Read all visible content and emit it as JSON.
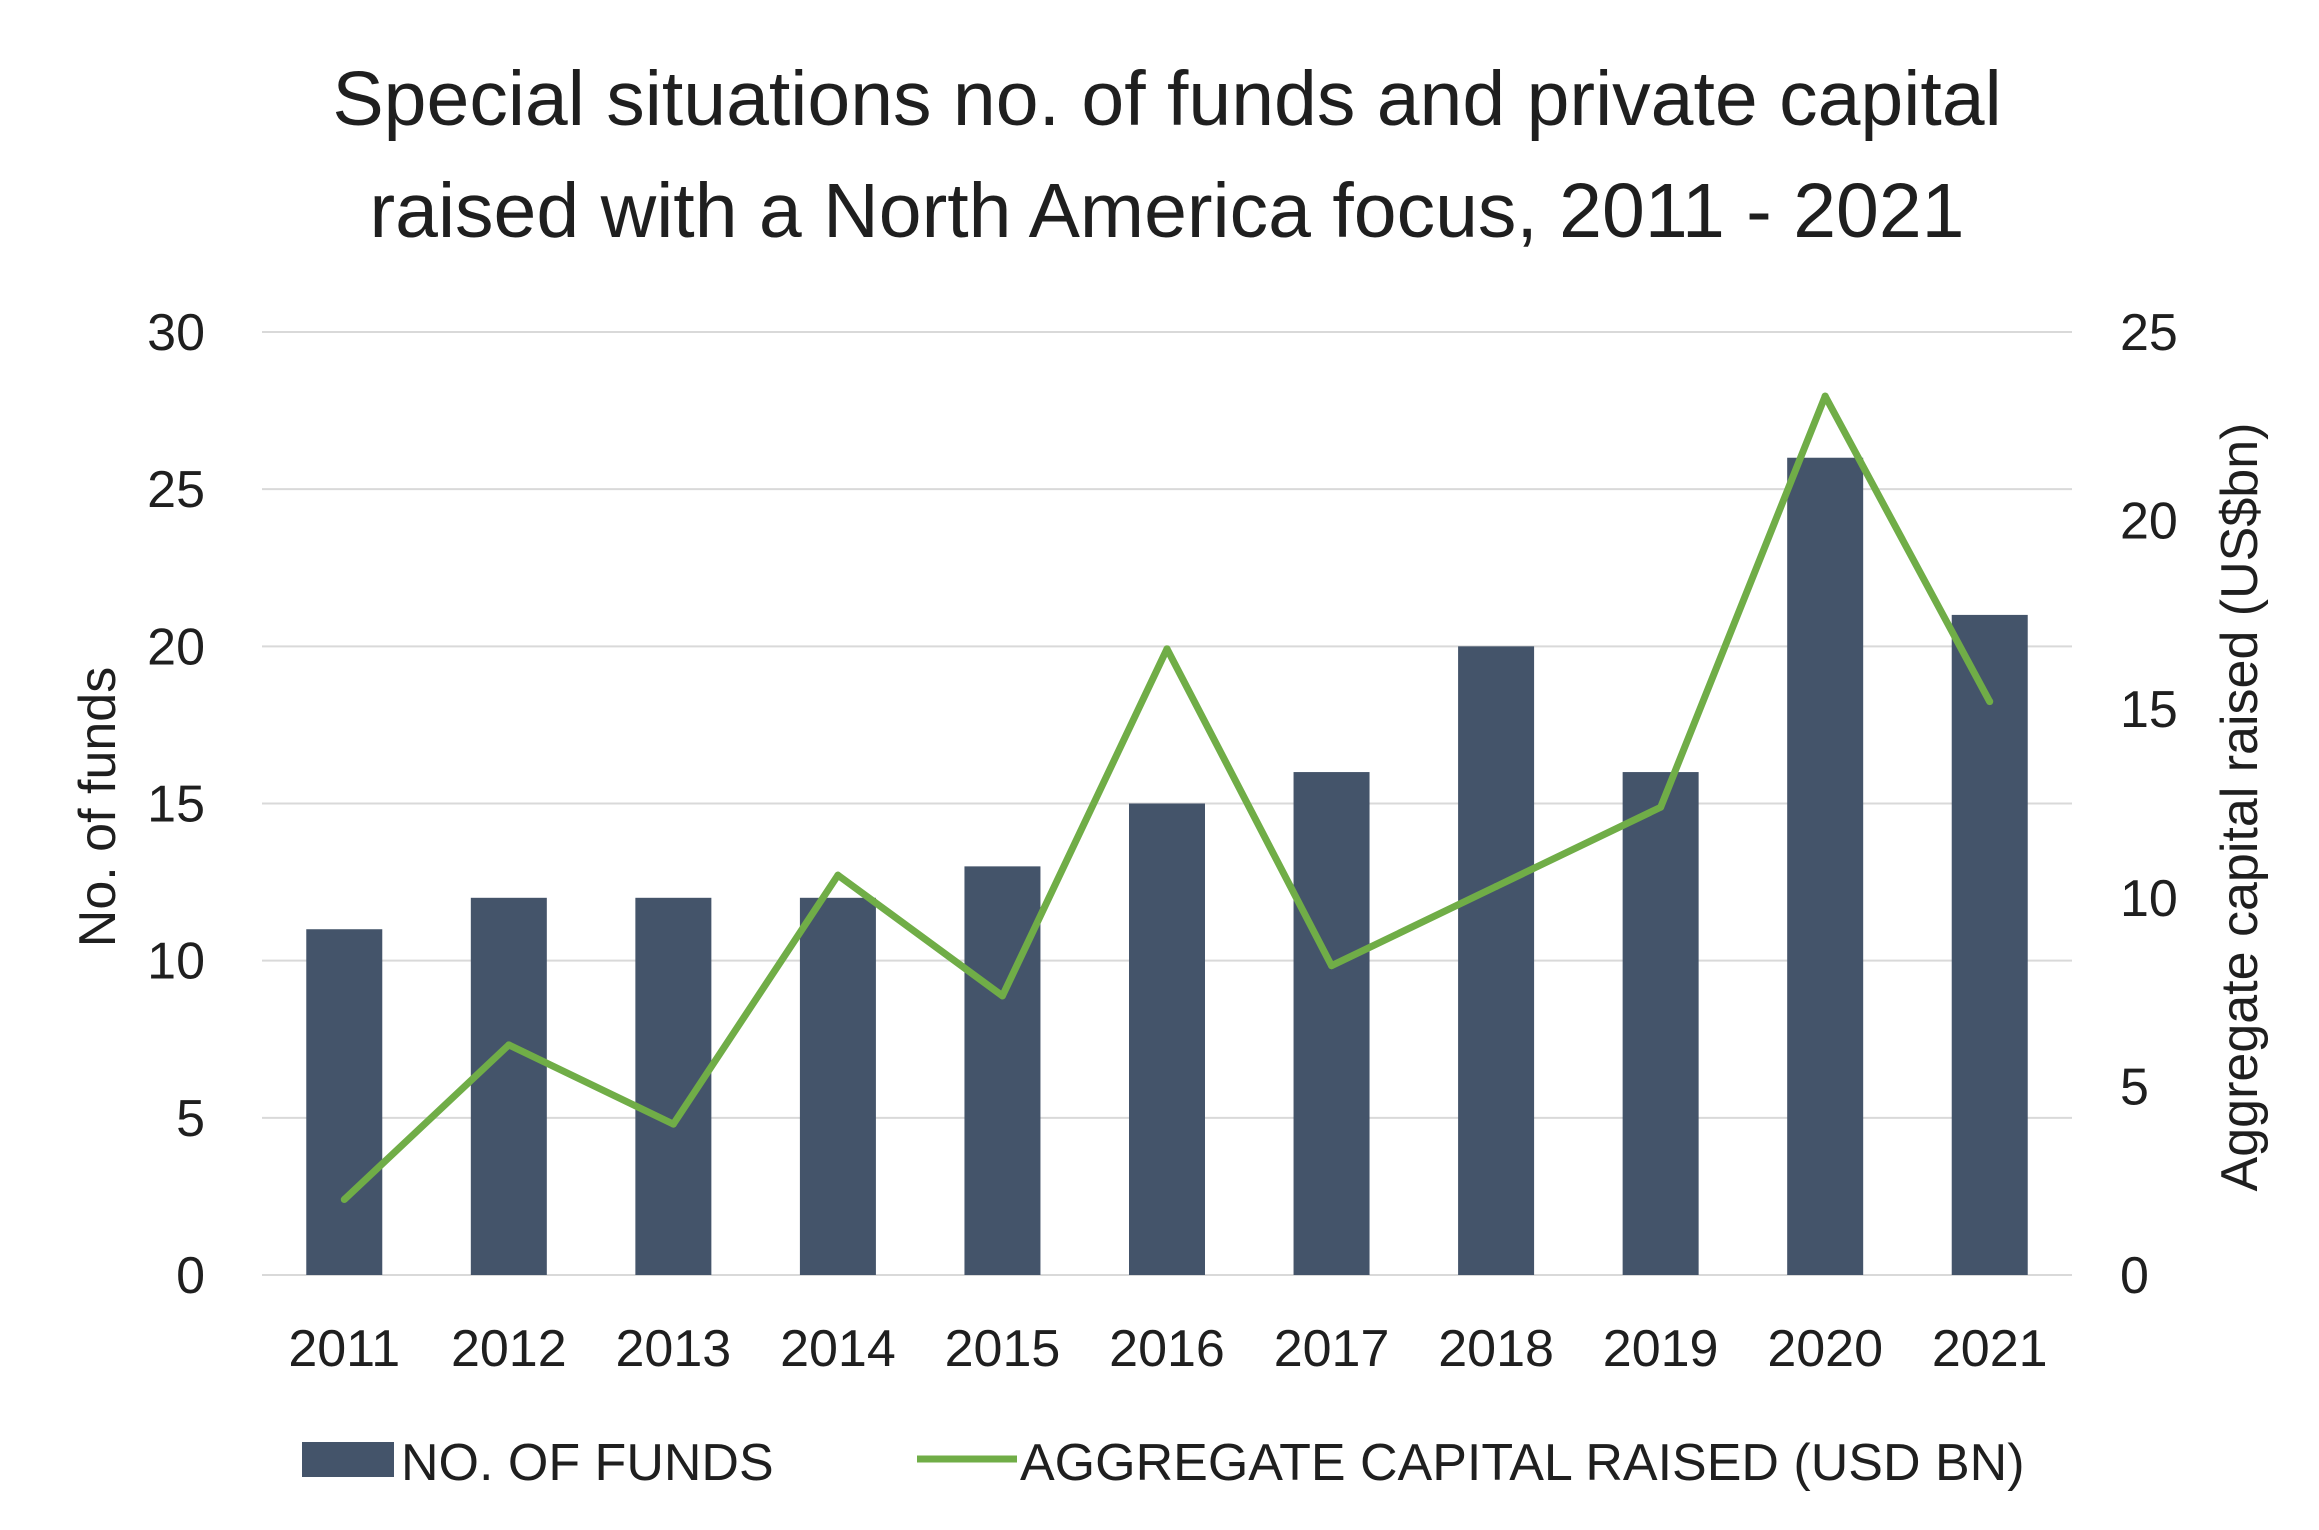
{
  "chart_data": {
    "type": "bar",
    "title_lines": [
      "Special situations no. of funds and private capital",
      "raised with a North America focus, 2011 - 2021"
    ],
    "categories": [
      "2011",
      "2012",
      "2013",
      "2014",
      "2015",
      "2016",
      "2017",
      "2018",
      "2019",
      "2020",
      "2021"
    ],
    "series": [
      {
        "name": "NO. OF FUNDS",
        "type": "bar",
        "axis": "left",
        "color": "#44546a",
        "values": [
          11,
          12,
          12,
          12,
          13,
          15,
          16,
          20,
          16,
          26,
          21
        ]
      },
      {
        "name": "AGGREGATE CAPITAL RAISED (USD BN)",
        "type": "line",
        "axis": "right",
        "color": "#70ad47",
        "values": [
          2.0,
          6.1,
          4.0,
          10.6,
          7.4,
          16.6,
          8.2,
          10.3,
          12.4,
          23.3,
          15.2
        ]
      }
    ],
    "ylabel": "No. of funds",
    "y2label": "Aggregate capital raised (US$bn)",
    "ylim": [
      0,
      30
    ],
    "y2lim": [
      0,
      25
    ],
    "yticks": [
      "0",
      "5",
      "10",
      "15",
      "20",
      "25",
      "30"
    ],
    "y2ticks": [
      "0",
      "5",
      "10",
      "15",
      "20",
      "25"
    ],
    "grid": true,
    "legend_position": "bottom",
    "gridline_color": "#d9d9d9"
  }
}
